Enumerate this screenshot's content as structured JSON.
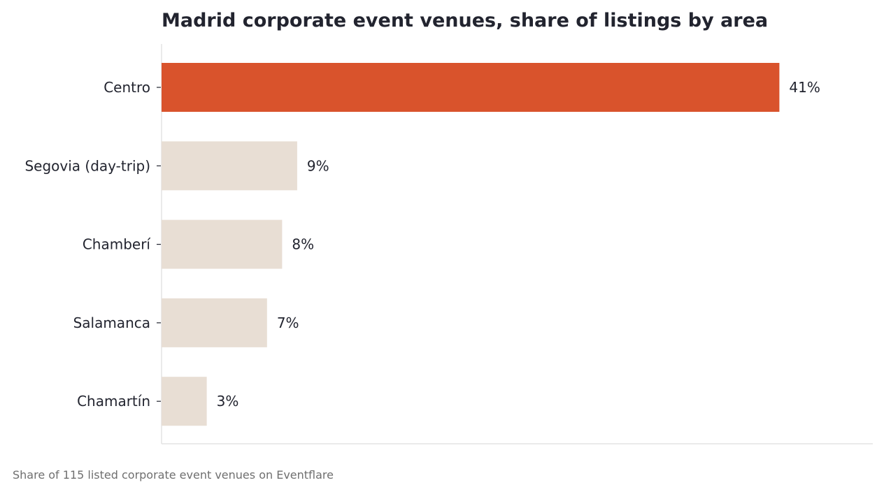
{
  "chart_data": {
    "type": "bar",
    "orientation": "horizontal",
    "title": "Madrid corporate event venues, share of listings by area",
    "categories": [
      "Centro",
      "Segovia (day-trip)",
      "Chamberí",
      "Salamanca",
      "Chamartín"
    ],
    "values": [
      41,
      9,
      8,
      7,
      3
    ],
    "value_labels": [
      "41%",
      "9%",
      "8%",
      "7%",
      "3%"
    ],
    "unit": "%",
    "highlight_category": "Centro",
    "xlim": [
      0,
      47.2
    ],
    "grid": false,
    "xlabel": "",
    "ylabel": ""
  },
  "caption": "Share of 115 listed corporate event venues on Eventflare",
  "colors": {
    "highlight": "#d9532c",
    "bar": "#e8ded4",
    "text": "#22242f",
    "axis": "#e3e3e3",
    "caption": "#6f6f6f"
  }
}
